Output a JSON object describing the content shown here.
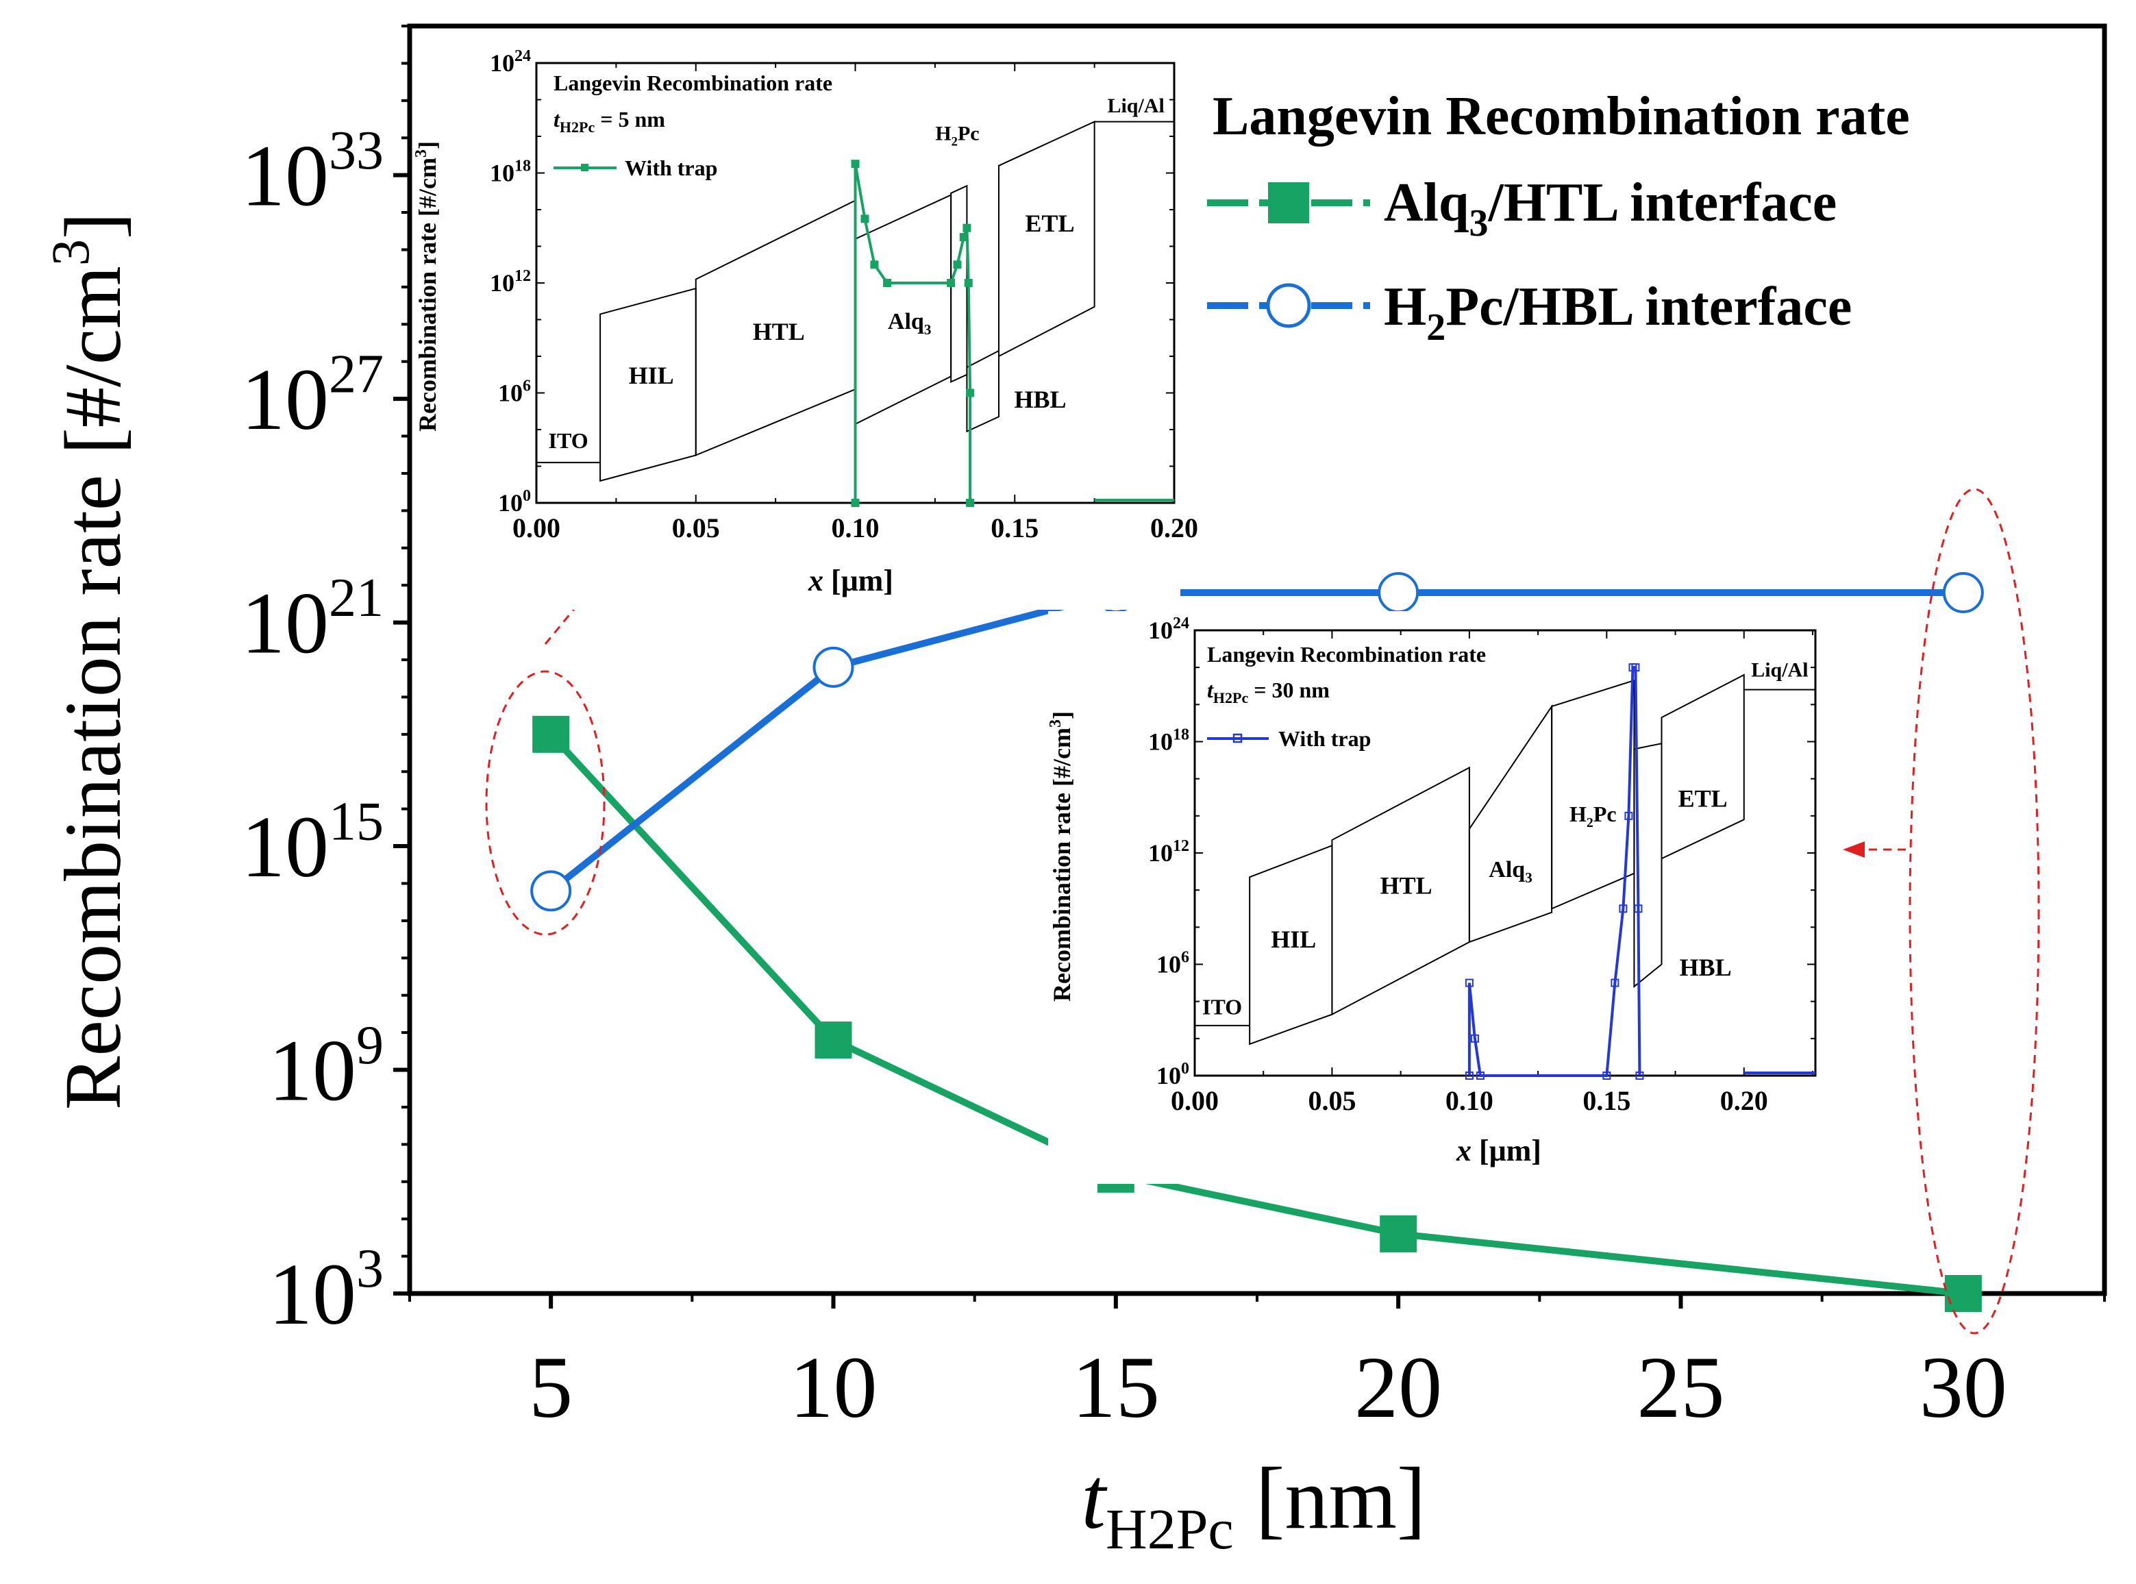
{
  "chart_data": [
    {
      "type": "line",
      "title": "Langevin Recombination rate",
      "xlabel_main": "t",
      "xlabel_sub": "H2Pc",
      "xlabel_unit": " [nm]",
      "ylabel": "Recombination rate [#/cm",
      "ylabel_sup": "3",
      "ylabel_end": "]",
      "yscale": "log",
      "xlim": [
        2.5,
        32.5
      ],
      "ylim_exp": [
        3,
        37
      ],
      "x_ticks": [
        5,
        10,
        15,
        20,
        25,
        30
      ],
      "y_tick_exps": [
        3,
        9,
        15,
        21,
        27,
        33
      ],
      "y_tick_base": "10",
      "x": [
        5,
        10,
        15,
        20,
        25,
        30
      ],
      "series": [
        {
          "name_parts": [
            "Alq",
            "3",
            "/HTL interface"
          ],
          "color": "#16a363",
          "marker": "filled-square",
          "points": [
            [
              5,
              18
            ],
            [
              10,
              9.8
            ],
            [
              15,
              6.2
            ],
            [
              20,
              4.6
            ],
            [
              30,
              3.0
            ]
          ]
        },
        {
          "name_parts": [
            "H",
            "2",
            "Pc/HBL interface"
          ],
          "color": "#1a6fd6",
          "marker": "open-circle",
          "points": [
            [
              5,
              13.8
            ],
            [
              10,
              19.8
            ],
            [
              15,
              21.8
            ],
            [
              20,
              21.8
            ],
            [
              30,
              21.8
            ]
          ]
        }
      ],
      "annotation_color": "#e02020"
    },
    {
      "type": "line",
      "inset": "top-left",
      "title": "Langevin Recombination rate",
      "param_var": "t",
      "param_sub": "H2Pc",
      "param_text": " = 5 nm",
      "legend": "With trap",
      "xlabel": " [μm]",
      "xlabel_var": "x",
      "ylabel": "Recombination rate [#/cm",
      "ylabel_sup": "3",
      "ylabel_end": "]",
      "xlim": [
        0,
        0.2
      ],
      "ylim_exp": [
        0,
        24
      ],
      "x_tick_labels": [
        "0.00",
        "0.05",
        "0.10",
        "0.15",
        "0.20"
      ],
      "x_ticks": [
        0,
        0.05,
        0.1,
        0.15,
        0.2
      ],
      "y_tick_exps": [
        0,
        6,
        12,
        18,
        24
      ],
      "color": "#16a363",
      "layers": [
        "ITO",
        "HIL",
        "HTL",
        "Alq3",
        "H2Pc",
        "HBL",
        "ETL",
        "Liq/Al"
      ],
      "trace": [
        [
          0.1,
          0
        ],
        [
          0.1,
          18.5
        ],
        [
          0.103,
          15.5
        ],
        [
          0.106,
          13
        ],
        [
          0.11,
          12
        ],
        [
          0.13,
          12
        ],
        [
          0.132,
          13
        ],
        [
          0.134,
          14.5
        ],
        [
          0.135,
          15
        ],
        [
          0.1355,
          12
        ],
        [
          0.136,
          6
        ],
        [
          0.136,
          0
        ]
      ]
    },
    {
      "type": "line",
      "inset": "center-right",
      "title": "Langevin Recombination rate",
      "param_var": "t",
      "param_sub": "H2Pc",
      "param_text": " = 30 nm",
      "legend": "With trap",
      "xlabel": " [μm]",
      "xlabel_var": "x",
      "ylabel": "Recombination rate [#/cm",
      "ylabel_sup": "3",
      "ylabel_end": "]",
      "xlim": [
        0,
        0.226
      ],
      "ylim_exp": [
        0,
        24
      ],
      "x_tick_labels": [
        "0.00",
        "0.05",
        "0.10",
        "0.15",
        "0.20"
      ],
      "x_ticks": [
        0,
        0.05,
        0.1,
        0.15,
        0.2
      ],
      "y_tick_exps": [
        0,
        6,
        12,
        18,
        24
      ],
      "color": "#2438d8",
      "layers": [
        "ITO",
        "HIL",
        "HTL",
        "Alq3",
        "H2Pc",
        "HBL",
        "ETL",
        "Liq/Al"
      ],
      "trace": [
        [
          0.1,
          0
        ],
        [
          0.1,
          5
        ],
        [
          0.102,
          2
        ],
        [
          0.104,
          0
        ],
        [
          0.15,
          0
        ],
        [
          0.153,
          5
        ],
        [
          0.156,
          9
        ],
        [
          0.158,
          14
        ],
        [
          0.1595,
          22
        ],
        [
          0.1605,
          22
        ],
        [
          0.1615,
          9
        ],
        [
          0.162,
          0
        ]
      ]
    }
  ]
}
